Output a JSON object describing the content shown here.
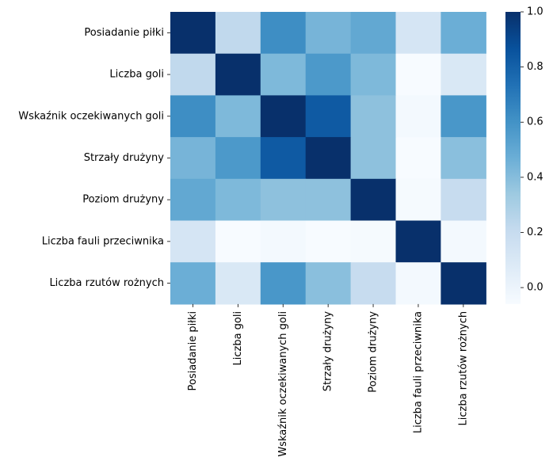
{
  "chart_data": {
    "type": "heatmap",
    "title": "",
    "xlabel": "",
    "ylabel": "",
    "labels": [
      "Posiadanie piłki",
      "Liczba goli",
      "Wskaźnik oczekiwanych goli",
      "Strzały drużyny",
      "Poziom drużyny",
      "Liczba fauli przeciwnika",
      "Liczba rzutów rożnych"
    ],
    "values": [
      [
        1.0,
        0.22,
        0.62,
        0.44,
        0.5,
        0.12,
        0.47
      ],
      [
        0.22,
        1.0,
        0.42,
        0.57,
        0.42,
        -0.06,
        0.1
      ],
      [
        0.62,
        0.42,
        1.0,
        0.83,
        0.38,
        -0.04,
        0.58
      ],
      [
        0.44,
        0.57,
        0.83,
        1.0,
        0.38,
        -0.06,
        0.39
      ],
      [
        0.5,
        0.42,
        0.38,
        0.38,
        1.0,
        -0.05,
        0.2
      ],
      [
        0.12,
        -0.06,
        -0.04,
        -0.06,
        -0.05,
        1.0,
        -0.04
      ],
      [
        0.47,
        0.1,
        0.58,
        0.39,
        0.2,
        -0.04,
        1.0
      ]
    ],
    "colorbar": {
      "colormap": "Blues",
      "vmin": -0.06,
      "vmax": 1.0,
      "ticks": [
        "0.0",
        "0.2",
        "0.4",
        "0.6",
        "0.8",
        "1.0"
      ]
    },
    "grid": false,
    "legend": "colorbar-right"
  }
}
